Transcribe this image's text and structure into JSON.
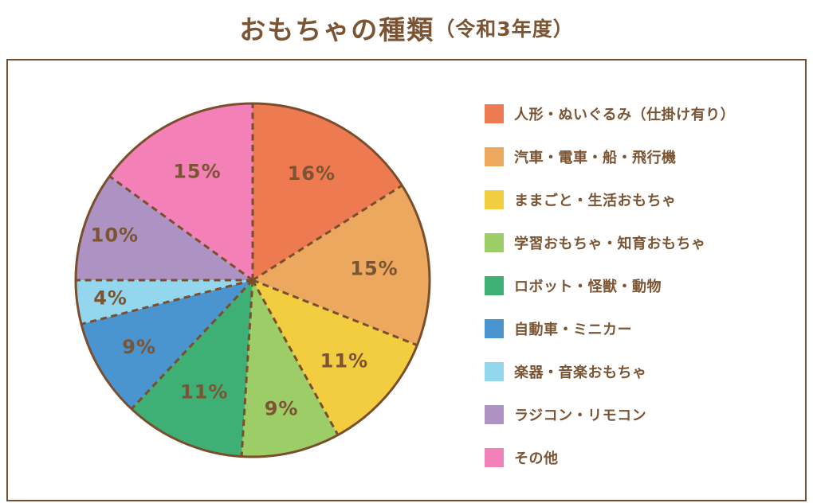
{
  "title": {
    "main": "おもちゃの種類",
    "suffix": "（令和3年度）"
  },
  "colors": {
    "text_brown": "#7A5433",
    "line_brown": "#7A4E2C",
    "panel_border": "#7A4E2C",
    "background": "#FFFFFF"
  },
  "chart_data": {
    "type": "pie",
    "title": "おもちゃの種類（令和3年度）",
    "categories": [
      "人形・ぬいぐるみ（仕掛け有り）",
      "汽車・電車・船・飛行機",
      "ままごと・生活おもちゃ",
      "学習おもちゃ・知育おもちゃ",
      "ロボット・怪獣・動物",
      "自動車・ミニカー",
      "楽器・音楽おもちゃ",
      "ラジコン・リモコン",
      "その他"
    ],
    "values": [
      16,
      15,
      11,
      9,
      11,
      9,
      4,
      10,
      15
    ],
    "unit": "%",
    "slice_labels": [
      "16%",
      "15%",
      "11%",
      "9%",
      "11%",
      "9%",
      "4%",
      "10%",
      "15%"
    ],
    "colors": [
      "#EE7A52",
      "#EBA85E",
      "#F2CD40",
      "#9DCD66",
      "#3FB075",
      "#4A94D0",
      "#93D6EE",
      "#AC93C4",
      "#F480B8"
    ],
    "start_angle": "top",
    "direction": "clockwise",
    "divider_style": "dashed",
    "outline_color": "#7A4E2C",
    "label_color": "#7A5433",
    "legend_position": "right"
  }
}
